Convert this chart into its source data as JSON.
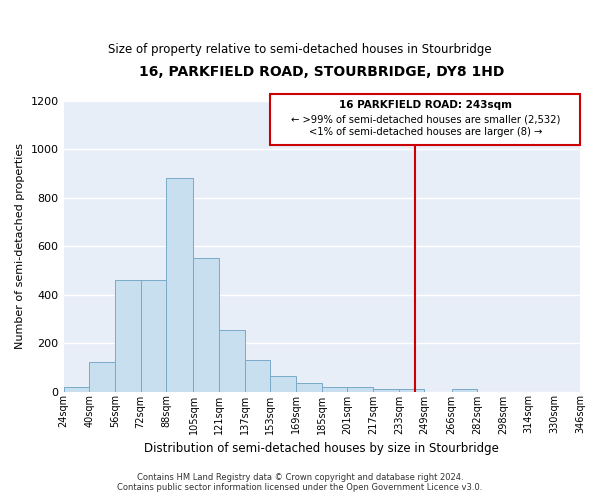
{
  "title": "16, PARKFIELD ROAD, STOURBRIDGE, DY8 1HD",
  "subtitle": "Size of property relative to semi-detached houses in Stourbridge",
  "xlabel": "Distribution of semi-detached houses by size in Stourbridge",
  "ylabel": "Number of semi-detached properties",
  "bar_color": "#c8dff0",
  "bar_edge_color": "#7aaac8",
  "background_color": "#e8eef8",
  "grid_color": "#ffffff",
  "vline_x": 243,
  "vline_color": "#cc0000",
  "annotation_title": "16 PARKFIELD ROAD: 243sqm",
  "annotation_line1": "← >99% of semi-detached houses are smaller (2,532)",
  "annotation_line2": "<1% of semi-detached houses are larger (8) →",
  "annotation_box_color": "#cc0000",
  "bin_edges": [
    24,
    40,
    56,
    72,
    88,
    105,
    121,
    137,
    153,
    169,
    185,
    201,
    217,
    233,
    249,
    266,
    282,
    298,
    314,
    330,
    346
  ],
  "bin_heights": [
    18,
    120,
    460,
    460,
    880,
    550,
    255,
    130,
    65,
    35,
    20,
    20,
    10,
    10,
    0,
    10,
    0,
    0,
    0,
    0
  ],
  "ylim": [
    0,
    1200
  ],
  "yticks": [
    0,
    200,
    400,
    600,
    800,
    1000,
    1200
  ],
  "tick_labels": [
    "24sqm",
    "40sqm",
    "56sqm",
    "72sqm",
    "88sqm",
    "105sqm",
    "121sqm",
    "137sqm",
    "153sqm",
    "169sqm",
    "185sqm",
    "201sqm",
    "217sqm",
    "233sqm",
    "249sqm",
    "266sqm",
    "282sqm",
    "298sqm",
    "314sqm",
    "330sqm",
    "346sqm"
  ],
  "footnote_line1": "Contains HM Land Registry data © Crown copyright and database right 2024.",
  "footnote_line2": "Contains public sector information licensed under the Open Government Licence v3.0."
}
